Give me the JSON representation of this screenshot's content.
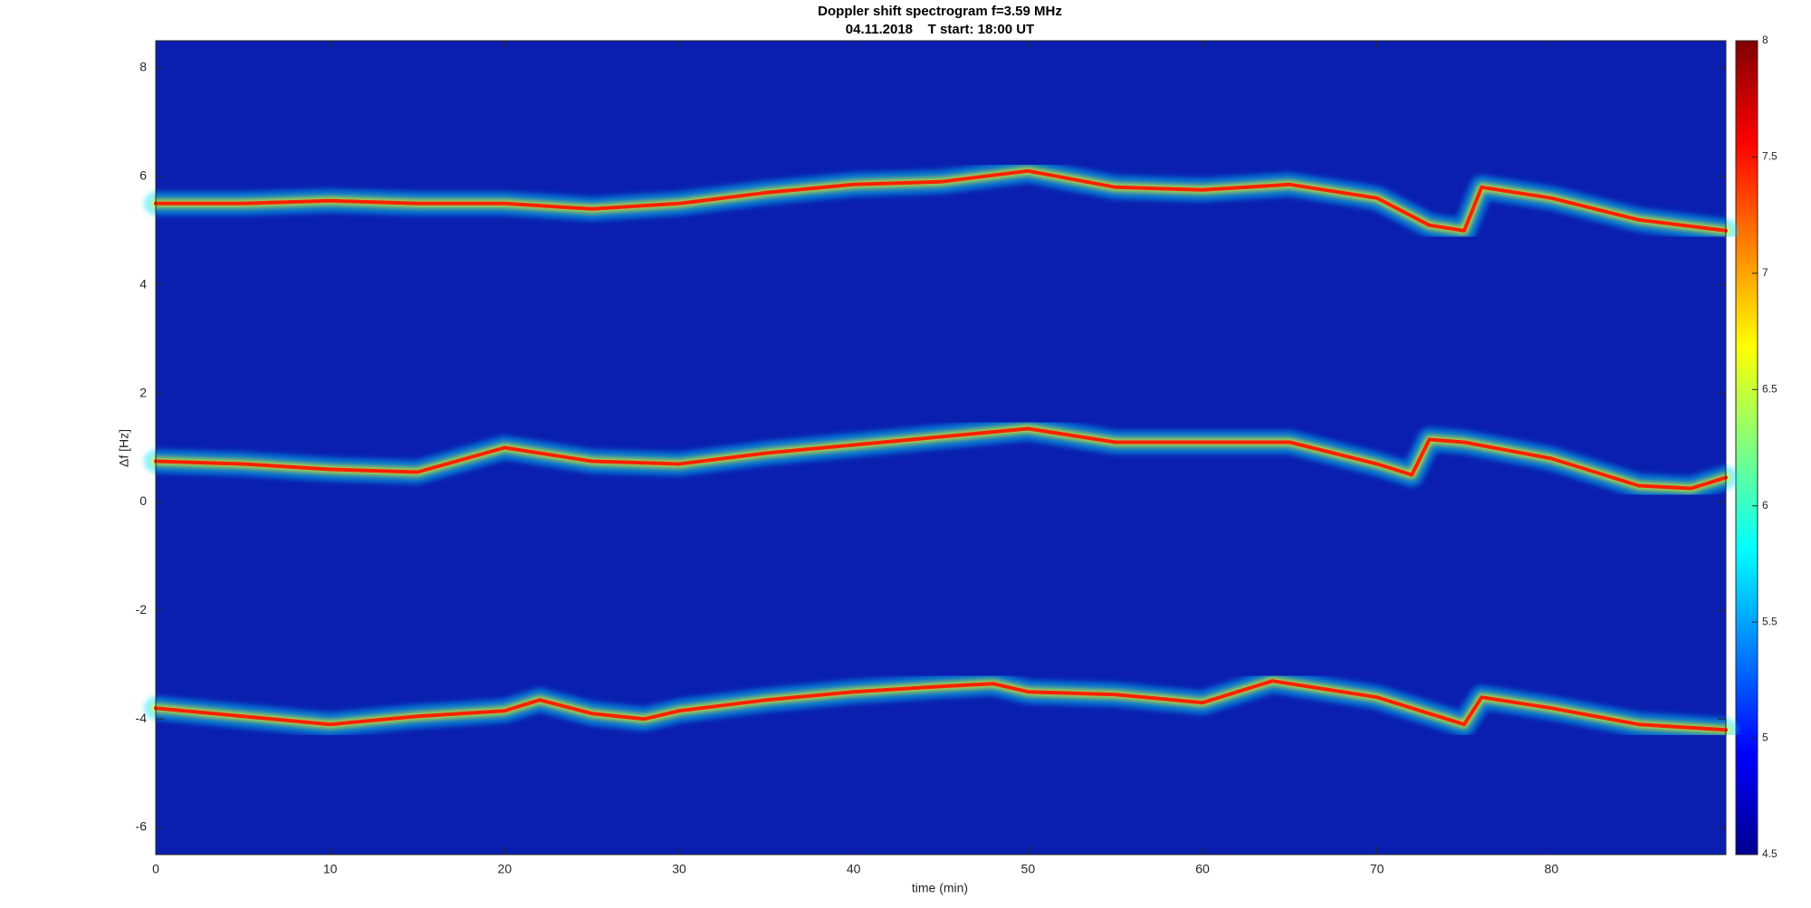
{
  "chart_data": {
    "type": "spectrogram",
    "title": "Doppler shift spectrogram f=3.59 MHz",
    "subtitle": "04.11.2018    T start: 18:00 UT",
    "xlabel": "time (min)",
    "ylabel": "Δf [Hz]",
    "xlim": [
      0,
      90
    ],
    "xticks": [
      0,
      10,
      20,
      30,
      40,
      50,
      60,
      70,
      80
    ],
    "ylim": [
      -6.5,
      8.5
    ],
    "yticks": [
      -6,
      -4,
      -2,
      0,
      2,
      4,
      6,
      8
    ],
    "colormap": "jet",
    "clim": [
      4.5,
      8
    ],
    "cticks": [
      4.5,
      5,
      5.5,
      6,
      6.5,
      7,
      7.5,
      8
    ],
    "series": [
      {
        "color": "#ff2000",
        "x": [
          0,
          5,
          10,
          15,
          20,
          25,
          30,
          35,
          40,
          45,
          50,
          55,
          60,
          65,
          70,
          73,
          75,
          76,
          80,
          85,
          90
        ],
        "values": [
          5.5,
          5.5,
          5.55,
          5.5,
          5.5,
          5.4,
          5.5,
          5.7,
          5.85,
          5.9,
          6.1,
          5.8,
          5.75,
          5.85,
          5.6,
          5.1,
          5.0,
          5.8,
          5.6,
          5.2,
          5.0
        ]
      },
      {
        "color": "#ff2000",
        "x": [
          0,
          5,
          10,
          15,
          20,
          25,
          30,
          35,
          40,
          45,
          50,
          55,
          60,
          65,
          70,
          72,
          73,
          75,
          80,
          85,
          88,
          90
        ],
        "values": [
          0.75,
          0.7,
          0.6,
          0.55,
          1.0,
          0.75,
          0.7,
          0.9,
          1.05,
          1.2,
          1.35,
          1.1,
          1.1,
          1.1,
          0.7,
          0.5,
          1.15,
          1.1,
          0.8,
          0.3,
          0.25,
          0.45
        ]
      },
      {
        "color": "#ff2000",
        "x": [
          0,
          5,
          10,
          15,
          20,
          22,
          25,
          28,
          30,
          35,
          40,
          45,
          48,
          50,
          55,
          60,
          64,
          70,
          75,
          76,
          80,
          85,
          90
        ],
        "values": [
          -3.8,
          -3.95,
          -4.1,
          -3.95,
          -3.85,
          -3.65,
          -3.9,
          -4.0,
          -3.85,
          -3.65,
          -3.5,
          -3.4,
          -3.35,
          -3.5,
          -3.55,
          -3.7,
          -3.3,
          -3.6,
          -4.1,
          -3.6,
          -3.8,
          -4.1,
          -4.2
        ]
      }
    ]
  }
}
